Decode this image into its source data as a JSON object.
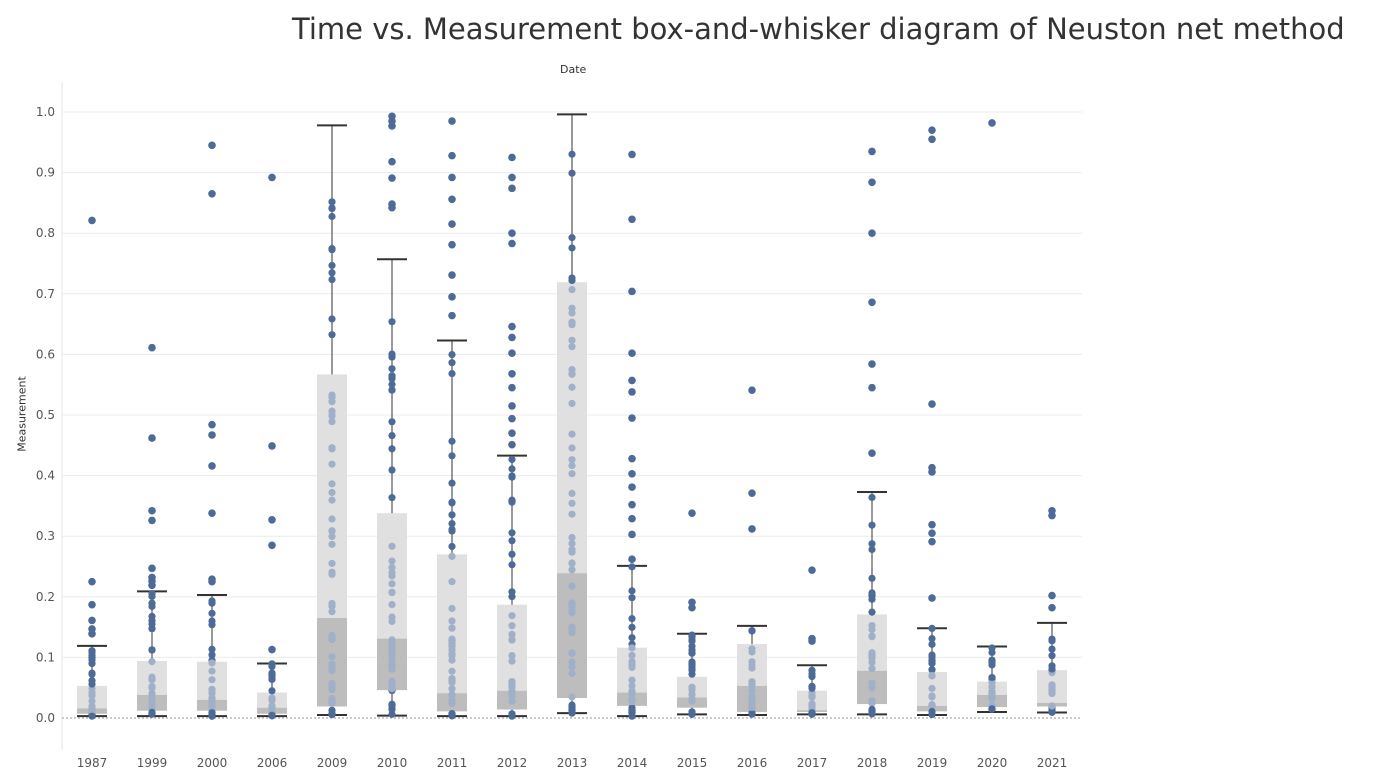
{
  "chart_data": {
    "type": "box",
    "title": "Time vs. Measurement box-and-whisker diagram of Neuston net method",
    "top_axis_label": "Date",
    "ylabel": "Measurement",
    "ylim": [
      0,
      1.0
    ],
    "yticks": [
      "0.0",
      "0.1",
      "0.2",
      "0.3",
      "0.4",
      "0.5",
      "0.6",
      "0.7",
      "0.8",
      "0.9",
      "1.0"
    ],
    "grid": true,
    "colors": {
      "point": "#4e6a96",
      "box_upper": "#e0e0e0",
      "box_lower": "#bdbdbd",
      "whisker": "#333333"
    },
    "categories": [
      "1987",
      "1999",
      "2000",
      "2006",
      "2009",
      "2010",
      "2011",
      "2012",
      "2013",
      "2014",
      "2015",
      "2016",
      "2017",
      "2018",
      "2019",
      "2020",
      "2021"
    ],
    "boxes": [
      {
        "category": "1987",
        "whisker_low": 0.003,
        "q1": 0.007,
        "median": 0.016,
        "q3": 0.053,
        "whisker_high": 0.119,
        "outliers": [
          0.225,
          0.187,
          0.161,
          0.147,
          0.139,
          0.821
        ]
      },
      {
        "category": "1999",
        "whisker_low": 0.003,
        "q1": 0.012,
        "median": 0.038,
        "q3": 0.094,
        "whisker_high": 0.209,
        "outliers": [
          0.247,
          0.232,
          0.226,
          0.219,
          0.342,
          0.326,
          0.462,
          0.611
        ]
      },
      {
        "category": "2000",
        "whisker_low": 0.003,
        "q1": 0.012,
        "median": 0.03,
        "q3": 0.093,
        "whisker_high": 0.203,
        "outliers": [
          0.229,
          0.225,
          0.338,
          0.416,
          0.467,
          0.484,
          0.865,
          0.945
        ]
      },
      {
        "category": "2006",
        "whisker_low": 0.003,
        "q1": 0.007,
        "median": 0.017,
        "q3": 0.042,
        "whisker_high": 0.09,
        "outliers": [
          0.113,
          0.285,
          0.327,
          0.449,
          0.892
        ]
      },
      {
        "category": "2009",
        "whisker_low": 0.005,
        "q1": 0.019,
        "median": 0.165,
        "q3": 0.567,
        "whisker_high": 0.978,
        "outliers": []
      },
      {
        "category": "2010",
        "whisker_low": 0.004,
        "q1": 0.046,
        "median": 0.131,
        "q3": 0.338,
        "whisker_high": 0.757,
        "outliers": [
          0.842,
          0.848,
          0.891,
          0.918,
          0.977,
          0.985,
          0.993
        ]
      },
      {
        "category": "2011",
        "whisker_low": 0.003,
        "q1": 0.011,
        "median": 0.041,
        "q3": 0.27,
        "whisker_high": 0.623,
        "outliers": [
          0.664,
          0.695,
          0.731,
          0.781,
          0.815,
          0.856,
          0.892,
          0.928,
          0.985
        ]
      },
      {
        "category": "2012",
        "whisker_low": 0.003,
        "q1": 0.014,
        "median": 0.045,
        "q3": 0.187,
        "whisker_high": 0.433,
        "outliers": [
          0.451,
          0.47,
          0.494,
          0.515,
          0.545,
          0.568,
          0.602,
          0.628,
          0.646,
          0.783,
          0.8,
          0.874,
          0.892,
          0.925
        ]
      },
      {
        "category": "2013",
        "whisker_low": 0.008,
        "q1": 0.033,
        "median": 0.239,
        "q3": 0.719,
        "whisker_high": 0.996,
        "outliers": []
      },
      {
        "category": "2014",
        "whisker_low": 0.003,
        "q1": 0.02,
        "median": 0.042,
        "q3": 0.116,
        "whisker_high": 0.251,
        "outliers": [
          0.262,
          0.303,
          0.329,
          0.352,
          0.381,
          0.403,
          0.428,
          0.495,
          0.538,
          0.557,
          0.602,
          0.704,
          0.823,
          0.93
        ]
      },
      {
        "category": "2015",
        "whisker_low": 0.006,
        "q1": 0.017,
        "median": 0.034,
        "q3": 0.068,
        "whisker_high": 0.139,
        "outliers": [
          0.182,
          0.191,
          0.338
        ]
      },
      {
        "category": "2016",
        "whisker_low": 0.005,
        "q1": 0.01,
        "median": 0.053,
        "q3": 0.122,
        "whisker_high": 0.152,
        "outliers": [
          0.312,
          0.371,
          0.541
        ]
      },
      {
        "category": "2017",
        "whisker_low": 0.006,
        "q1": 0.01,
        "median": 0.013,
        "q3": 0.045,
        "whisker_high": 0.087,
        "outliers": [
          0.127,
          0.131,
          0.244
        ]
      },
      {
        "category": "2018",
        "whisker_low": 0.006,
        "q1": 0.023,
        "median": 0.078,
        "q3": 0.171,
        "whisker_high": 0.373,
        "outliers": [
          0.437,
          0.545,
          0.584,
          0.686,
          0.8,
          0.884,
          0.935
        ]
      },
      {
        "category": "2019",
        "whisker_low": 0.005,
        "q1": 0.011,
        "median": 0.02,
        "q3": 0.076,
        "whisker_high": 0.148,
        "outliers": [
          0.198,
          0.291,
          0.305,
          0.319,
          0.406,
          0.413,
          0.518,
          0.955,
          0.97
        ]
      },
      {
        "category": "2020",
        "whisker_low": 0.01,
        "q1": 0.018,
        "median": 0.038,
        "q3": 0.06,
        "whisker_high": 0.118,
        "outliers": [
          0.982
        ]
      },
      {
        "category": "2021",
        "whisker_low": 0.009,
        "q1": 0.019,
        "median": 0.025,
        "q3": 0.079,
        "whisker_high": 0.157,
        "outliers": [
          0.182,
          0.202,
          0.334,
          0.342
        ]
      }
    ]
  }
}
